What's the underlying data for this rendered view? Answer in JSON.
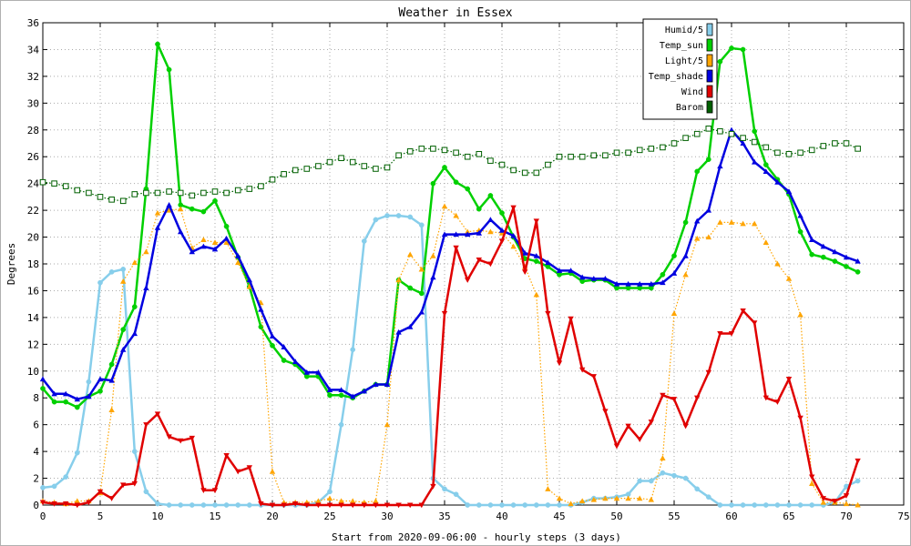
{
  "chart_data": {
    "type": "line",
    "title": "Weather in Essex",
    "xlabel": "Start from 2020-09-06:00 - hourly steps (3 days)",
    "ylabel": "Degrees",
    "xlim": [
      0,
      75
    ],
    "ylim": [
      0,
      36
    ],
    "x_ticks": [
      0,
      5,
      10,
      15,
      20,
      25,
      30,
      35,
      40,
      45,
      50,
      55,
      60,
      65,
      70,
      75
    ],
    "y_ticks": [
      0,
      2,
      4,
      6,
      8,
      10,
      12,
      14,
      16,
      18,
      20,
      22,
      24,
      26,
      28,
      30,
      32,
      34,
      36
    ],
    "grid": true,
    "legend_position": "top-right",
    "series": [
      {
        "name": "Humid/5",
        "color": "#87ceeb",
        "marker": "circle",
        "style": "solid",
        "values": [
          1.3,
          1.4,
          2.1,
          3.9,
          9.2,
          16.6,
          17.4,
          17.6,
          4.0,
          1.0,
          0.1,
          0,
          0,
          0,
          0,
          0,
          0,
          0,
          0,
          0,
          0,
          0,
          0,
          0,
          0.2,
          1.0,
          6.0,
          11.6,
          19.7,
          21.3,
          21.6,
          21.6,
          21.5,
          20.9,
          2.0,
          1.2,
          0.8,
          0,
          0,
          0,
          0,
          0,
          0,
          0,
          0,
          0,
          0,
          0.2,
          0.5,
          0.5,
          0.6,
          0.8,
          1.8,
          1.8,
          2.4,
          2.2,
          2.0,
          1.2,
          0.6,
          0,
          0,
          0,
          0,
          0,
          0,
          0,
          0,
          0,
          0,
          0.2,
          1.4,
          1.8
        ]
      },
      {
        "name": "Temp_sun",
        "color": "#00d000",
        "marker": "circle",
        "style": "solid",
        "values": [
          8.7,
          7.7,
          7.7,
          7.3,
          8.1,
          8.5,
          10.5,
          13.1,
          14.8,
          23.6,
          34.4,
          32.5,
          22.4,
          22.1,
          21.9,
          22.7,
          20.8,
          18.5,
          16.3,
          13.3,
          11.9,
          10.8,
          10.5,
          9.6,
          9.6,
          8.2,
          8.2,
          8.0,
          8.5,
          9.0,
          9.0,
          16.8,
          16.2,
          15.8,
          24.0,
          25.2,
          24.1,
          23.6,
          22.1,
          23.1,
          21.8,
          20.0,
          18.4,
          18.2,
          17.8,
          17.2,
          17.3,
          16.7,
          16.8,
          16.8,
          16.2,
          16.2,
          16.2,
          16.2,
          17.2,
          18.6,
          21.1,
          24.9,
          25.8,
          33.1,
          34.1,
          34.0,
          27.9,
          25.4,
          24.3,
          23.2,
          20.4,
          18.7,
          18.5,
          18.2,
          17.8,
          17.4
        ]
      },
      {
        "name": "Light/5",
        "color": "#ffa500",
        "marker": "triangle-up",
        "style": "dotted",
        "values": [
          0.3,
          0.2,
          0.1,
          0.3,
          0.3,
          0.9,
          7.1,
          16.7,
          18.1,
          18.9,
          21.8,
          22.0,
          22.1,
          19.2,
          19.8,
          19.6,
          19.6,
          18.1,
          16.3,
          15.1,
          2.5,
          0.2,
          0.2,
          0.2,
          0.3,
          0.5,
          0.3,
          0.3,
          0.2,
          0.3,
          6.0,
          16.8,
          18.7,
          17.6,
          18.6,
          22.3,
          21.6,
          20.4,
          20.5,
          20.4,
          20.3,
          19.3,
          17.8,
          15.7,
          1.2,
          0.5,
          0.1,
          0.3,
          0.4,
          0.5,
          0.5,
          0.5,
          0.5,
          0.4,
          3.5,
          14.3,
          17.2,
          19.9,
          20.0,
          21.1,
          21.1,
          21.0,
          21.0,
          19.6,
          18.0,
          16.9,
          14.2,
          1.6,
          0.2,
          0.2,
          0.1,
          0
        ]
      },
      {
        "name": "Temp_shade",
        "color": "#0000e0",
        "marker": "triangle-up",
        "style": "solid",
        "values": [
          9.4,
          8.3,
          8.3,
          7.9,
          8.1,
          9.4,
          9.3,
          11.6,
          12.8,
          16.2,
          20.7,
          22.4,
          20.4,
          18.9,
          19.3,
          19.1,
          19.9,
          18.6,
          16.8,
          14.6,
          12.6,
          11.8,
          10.7,
          9.9,
          9.9,
          8.6,
          8.6,
          8.1,
          8.5,
          9.0,
          9.0,
          12.9,
          13.3,
          14.4,
          17.0,
          20.2,
          20.2,
          20.2,
          20.3,
          21.3,
          20.5,
          20.1,
          18.8,
          18.6,
          18.1,
          17.5,
          17.5,
          17.0,
          16.9,
          16.9,
          16.5,
          16.5,
          16.5,
          16.5,
          16.6,
          17.3,
          18.6,
          21.2,
          22.0,
          25.3,
          28.0,
          27.0,
          25.6,
          24.9,
          24.1,
          23.4,
          21.6,
          19.8,
          19.3,
          18.9,
          18.5,
          18.2
        ]
      },
      {
        "name": "Wind",
        "color": "#e00000",
        "marker": "triangle-down",
        "style": "solid",
        "values": [
          0.2,
          0.1,
          0.1,
          0,
          0.2,
          1.0,
          0.5,
          1.5,
          1.6,
          6.0,
          6.8,
          5.1,
          4.8,
          5.0,
          1.1,
          1.1,
          3.7,
          2.5,
          2.8,
          0.1,
          0,
          0,
          0.1,
          0,
          0,
          0,
          0,
          0,
          0,
          0,
          0,
          0,
          0,
          0,
          1.4,
          14.3,
          19.2,
          16.8,
          18.3,
          18.0,
          19.7,
          22.2,
          17.4,
          21.2,
          14.3,
          10.6,
          13.9,
          10.1,
          9.6,
          7.0,
          4.4,
          5.9,
          4.9,
          6.2,
          8.2,
          7.9,
          5.9,
          8.0,
          9.9,
          12.8,
          12.8,
          14.5,
          13.6,
          8.0,
          7.7,
          9.4,
          6.5,
          2.1,
          0.5,
          0.3,
          0.7,
          3.3
        ]
      },
      {
        "name": "Barom",
        "color": "#006000",
        "marker": "square-open",
        "style": "dotted",
        "values": [
          24.1,
          24.0,
          23.8,
          23.5,
          23.3,
          23.0,
          22.8,
          22.7,
          23.2,
          23.3,
          23.3,
          23.4,
          23.3,
          23.1,
          23.3,
          23.4,
          23.3,
          23.5,
          23.6,
          23.8,
          24.3,
          24.7,
          25.0,
          25.1,
          25.3,
          25.6,
          25.9,
          25.6,
          25.3,
          25.1,
          25.2,
          26.1,
          26.4,
          26.6,
          26.6,
          26.5,
          26.3,
          26.0,
          26.2,
          25.7,
          25.4,
          25.0,
          24.8,
          24.8,
          25.4,
          26.0,
          26.0,
          26.0,
          26.1,
          26.1,
          26.3,
          26.3,
          26.5,
          26.6,
          26.7,
          27.0,
          27.4,
          27.7,
          28.1,
          27.9,
          27.7,
          27.4,
          27.1,
          26.7,
          26.3,
          26.2,
          26.3,
          26.5,
          26.8,
          27.0,
          27.0,
          26.6
        ]
      }
    ]
  }
}
